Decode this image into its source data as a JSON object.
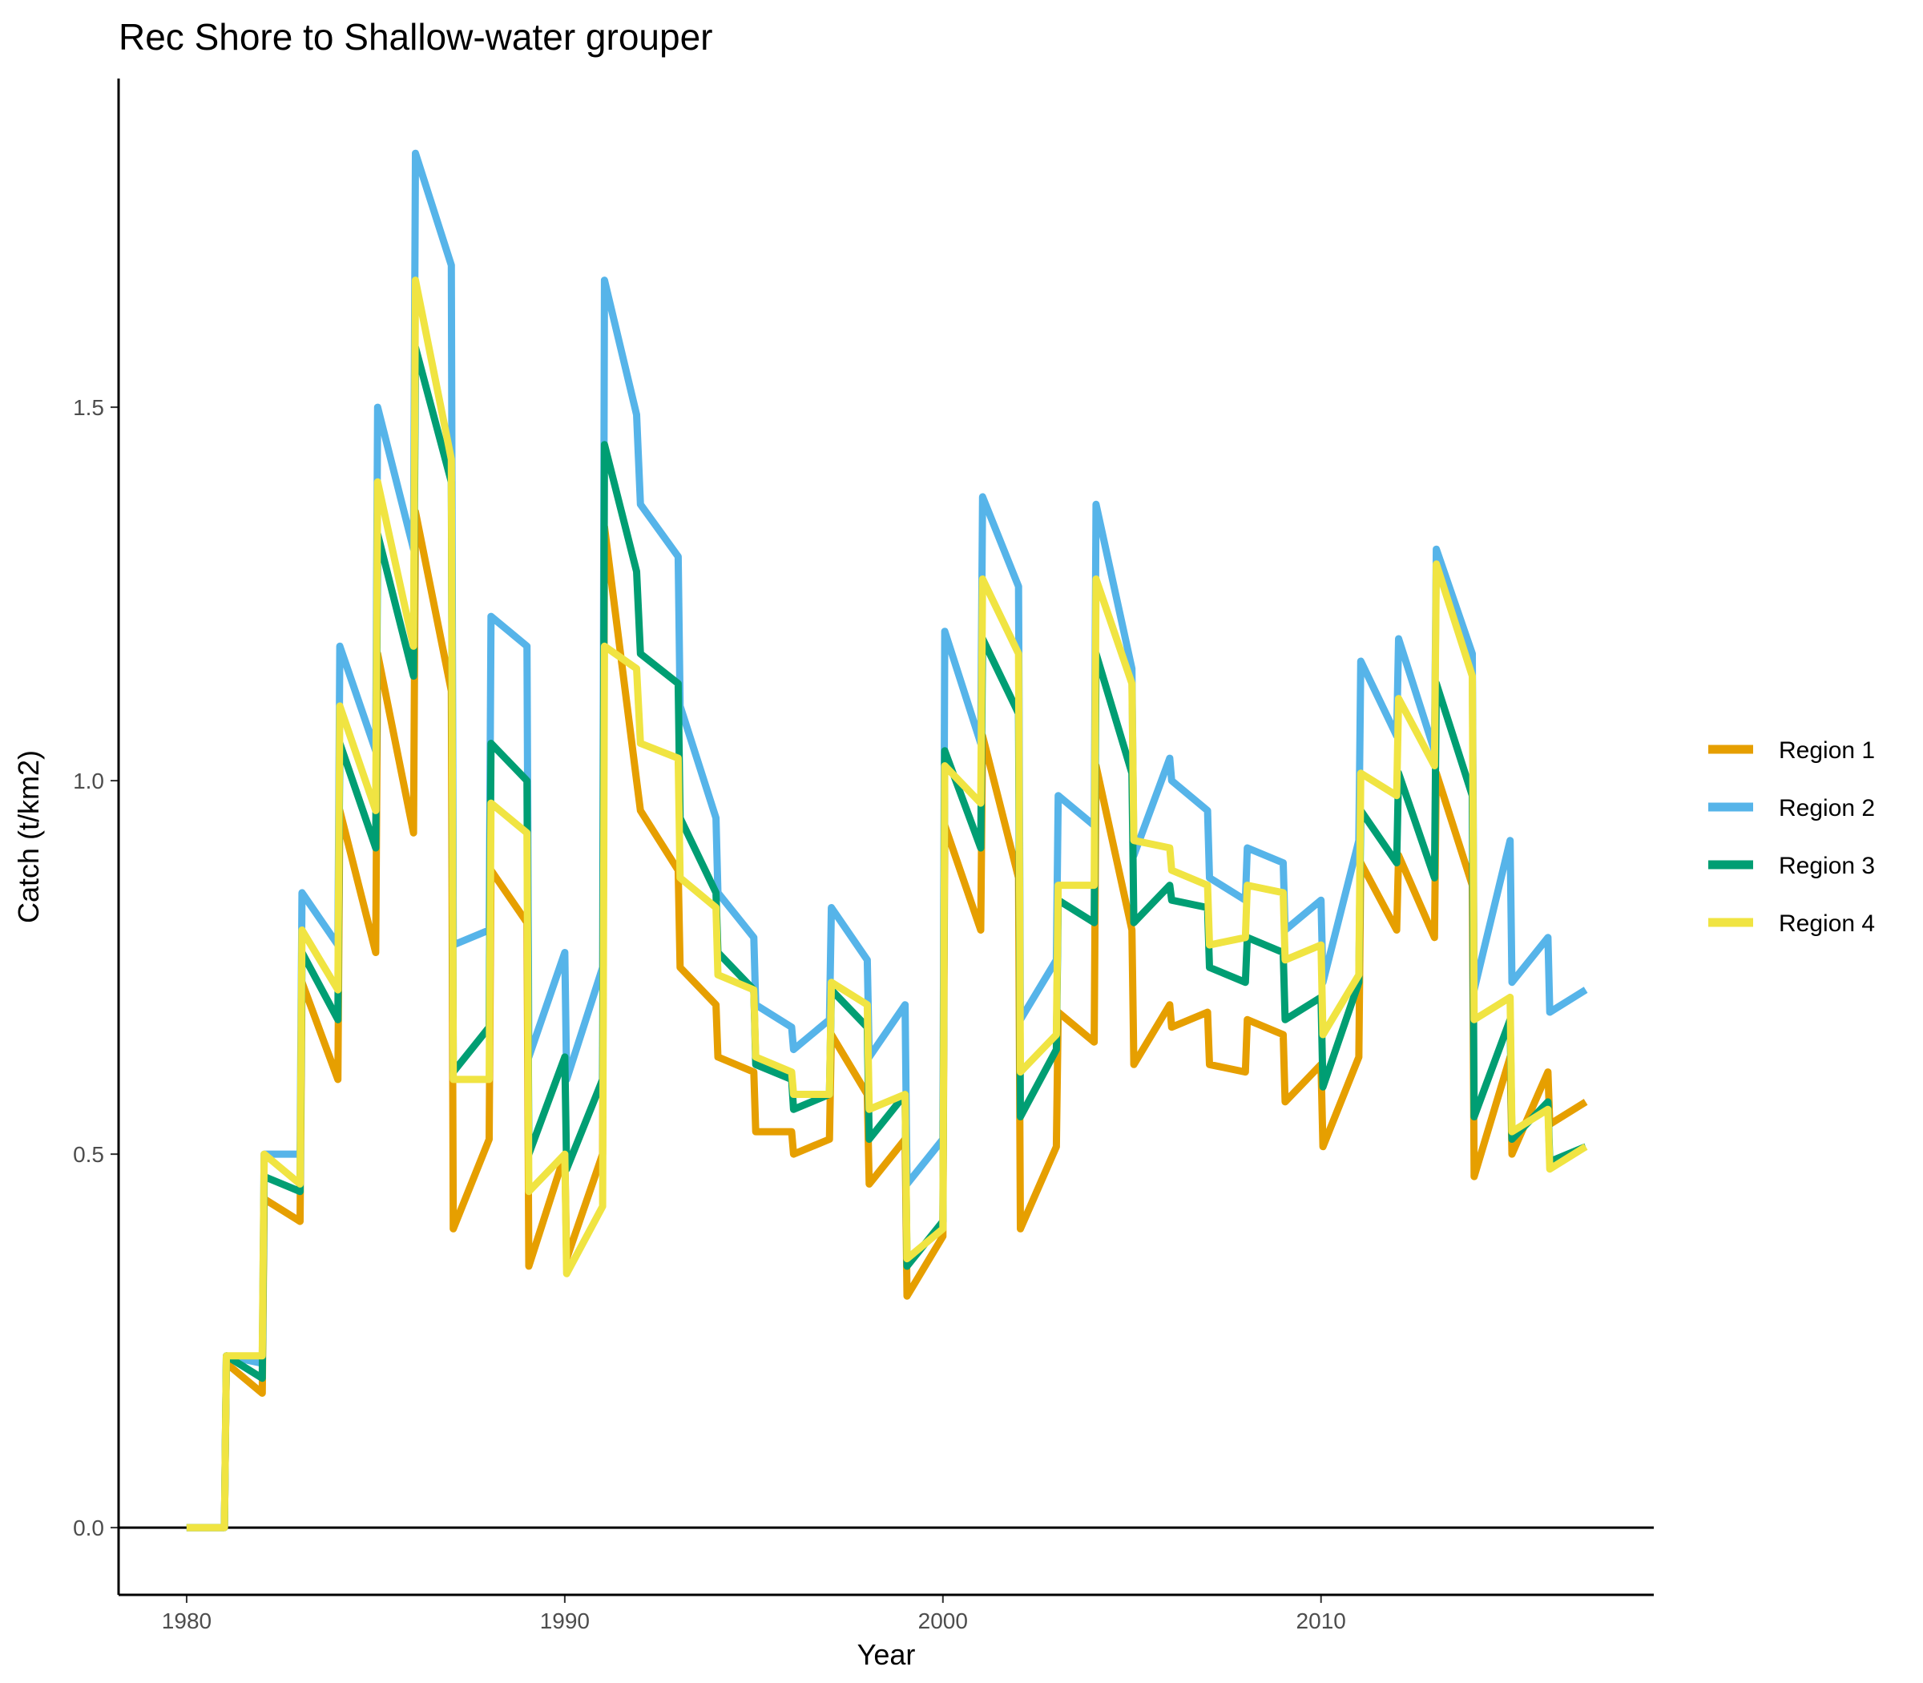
{
  "chart_data": {
    "type": "line",
    "title": "Rec Shore to Shallow-water grouper",
    "xlabel": "Year",
    "ylabel": "Catch (t/km2)",
    "xlim": [
      1978.2,
      2018.8
    ],
    "ylim": [
      -0.09,
      1.94
    ],
    "x_ticks": [
      1980,
      1990,
      2000,
      2010
    ],
    "y_ticks": [
      0.0,
      0.5,
      1.0,
      1.5
    ],
    "x_tick_labels": [
      "1980",
      "1990",
      "2000",
      "2010"
    ],
    "y_tick_labels": [
      "0.0",
      "0.5",
      "1.0",
      "1.5"
    ],
    "zero_reference_line": true,
    "grid": false,
    "legend_position": "right",
    "series": [
      {
        "name": "Region 1",
        "color": "#E69F00",
        "points": [
          [
            1980,
            0
          ],
          [
            1981,
            0
          ],
          [
            1981.05,
            0.22
          ],
          [
            1982,
            0.18
          ],
          [
            1982.05,
            0.44
          ],
          [
            1983,
            0.41
          ],
          [
            1983.05,
            0.73
          ],
          [
            1984,
            0.6
          ],
          [
            1984.05,
            0.96
          ],
          [
            1985,
            0.77
          ],
          [
            1985.05,
            1.17
          ],
          [
            1986,
            0.93
          ],
          [
            1986.05,
            1.36
          ],
          [
            1987,
            1.12
          ],
          [
            1987.05,
            0.4
          ],
          [
            1988,
            0.52
          ],
          [
            1988.05,
            0.88
          ],
          [
            1989,
            0.81
          ],
          [
            1989.05,
            0.35
          ],
          [
            1990,
            0.5
          ],
          [
            1990.05,
            0.36
          ],
          [
            1991,
            0.5
          ],
          [
            1991.05,
            1.34
          ],
          [
            1991.9,
            1.0
          ],
          [
            1992,
            0.96
          ],
          [
            1993,
            0.88
          ],
          [
            1993.05,
            0.75
          ],
          [
            1994,
            0.7
          ],
          [
            1994.05,
            0.63
          ],
          [
            1995,
            0.61
          ],
          [
            1995.05,
            0.53
          ],
          [
            1996,
            0.53
          ],
          [
            1996.05,
            0.5
          ],
          [
            1997,
            0.52
          ],
          [
            1997.05,
            0.66
          ],
          [
            1998,
            0.58
          ],
          [
            1998.05,
            0.46
          ],
          [
            1999,
            0.52
          ],
          [
            1999.05,
            0.31
          ],
          [
            2000,
            0.39
          ],
          [
            2000.05,
            0.94
          ],
          [
            2001,
            0.8
          ],
          [
            2001.05,
            1.06
          ],
          [
            2002,
            0.87
          ],
          [
            2002.05,
            0.4
          ],
          [
            2003,
            0.51
          ],
          [
            2003.05,
            0.69
          ],
          [
            2004,
            0.65
          ],
          [
            2004.05,
            1.02
          ],
          [
            2005,
            0.8
          ],
          [
            2005.05,
            0.62
          ],
          [
            2006,
            0.7
          ],
          [
            2006.05,
            0.67
          ],
          [
            2007,
            0.69
          ],
          [
            2007.05,
            0.62
          ],
          [
            2008,
            0.61
          ],
          [
            2008.05,
            0.68
          ],
          [
            2009,
            0.66
          ],
          [
            2009.05,
            0.57
          ],
          [
            2010,
            0.62
          ],
          [
            2010.05,
            0.51
          ],
          [
            2011,
            0.63
          ],
          [
            2011.05,
            0.89
          ],
          [
            2012,
            0.8
          ],
          [
            2012.05,
            0.9
          ],
          [
            2013,
            0.79
          ],
          [
            2013.05,
            1.01
          ],
          [
            2014,
            0.86
          ],
          [
            2014.05,
            0.47
          ],
          [
            2015,
            0.63
          ],
          [
            2015.05,
            0.5
          ],
          [
            2016,
            0.61
          ],
          [
            2016.05,
            0.54
          ],
          [
            2017,
            0.57
          ]
        ]
      },
      {
        "name": "Region 2",
        "color": "#56B4E9",
        "points": [
          [
            1980,
            0
          ],
          [
            1981,
            0
          ],
          [
            1981.05,
            0.23
          ],
          [
            1982,
            0.22
          ],
          [
            1982.05,
            0.5
          ],
          [
            1983,
            0.5
          ],
          [
            1983.05,
            0.85
          ],
          [
            1984,
            0.78
          ],
          [
            1984.05,
            1.18
          ],
          [
            1985,
            1.04
          ],
          [
            1985.05,
            1.5
          ],
          [
            1986,
            1.31
          ],
          [
            1986.05,
            1.84
          ],
          [
            1987,
            1.69
          ],
          [
            1987.05,
            0.78
          ],
          [
            1988,
            0.8
          ],
          [
            1988.05,
            1.22
          ],
          [
            1989,
            1.18
          ],
          [
            1989.05,
            0.63
          ],
          [
            1990,
            0.77
          ],
          [
            1990.05,
            0.6
          ],
          [
            1991,
            0.75
          ],
          [
            1991.05,
            1.67
          ],
          [
            1991.9,
            1.49
          ],
          [
            1992,
            1.37
          ],
          [
            1993,
            1.3
          ],
          [
            1993.05,
            1.1
          ],
          [
            1994,
            0.95
          ],
          [
            1994.05,
            0.85
          ],
          [
            1995,
            0.79
          ],
          [
            1995.05,
            0.7
          ],
          [
            1996,
            0.67
          ],
          [
            1996.05,
            0.64
          ],
          [
            1997,
            0.68
          ],
          [
            1997.05,
            0.83
          ],
          [
            1998,
            0.76
          ],
          [
            1998.05,
            0.63
          ],
          [
            1999,
            0.7
          ],
          [
            1999.05,
            0.46
          ],
          [
            2000,
            0.52
          ],
          [
            2000.05,
            1.2
          ],
          [
            2001,
            1.05
          ],
          [
            2001.05,
            1.38
          ],
          [
            2002,
            1.26
          ],
          [
            2002.05,
            0.68
          ],
          [
            2003,
            0.76
          ],
          [
            2003.05,
            0.98
          ],
          [
            2004,
            0.94
          ],
          [
            2004.05,
            1.37
          ],
          [
            2005,
            1.15
          ],
          [
            2005.05,
            0.9
          ],
          [
            2006,
            1.03
          ],
          [
            2006.05,
            1.0
          ],
          [
            2007,
            0.96
          ],
          [
            2007.05,
            0.87
          ],
          [
            2008,
            0.84
          ],
          [
            2008.05,
            0.91
          ],
          [
            2009,
            0.89
          ],
          [
            2009.05,
            0.8
          ],
          [
            2010,
            0.84
          ],
          [
            2010.05,
            0.73
          ],
          [
            2011,
            0.92
          ],
          [
            2011.05,
            1.16
          ],
          [
            2012,
            1.06
          ],
          [
            2012.05,
            1.19
          ],
          [
            2013,
            1.04
          ],
          [
            2013.05,
            1.31
          ],
          [
            2014,
            1.17
          ],
          [
            2014.05,
            0.72
          ],
          [
            2015,
            0.92
          ],
          [
            2015.05,
            0.73
          ],
          [
            2016,
            0.79
          ],
          [
            2016.05,
            0.69
          ],
          [
            2017,
            0.72
          ]
        ]
      },
      {
        "name": "Region 3",
        "color": "#009E73",
        "points": [
          [
            1980,
            0
          ],
          [
            1981,
            0
          ],
          [
            1981.05,
            0.23
          ],
          [
            1982,
            0.2
          ],
          [
            1982.05,
            0.47
          ],
          [
            1983,
            0.45
          ],
          [
            1983.05,
            0.77
          ],
          [
            1984,
            0.68
          ],
          [
            1984.05,
            1.05
          ],
          [
            1985,
            0.91
          ],
          [
            1985.05,
            1.33
          ],
          [
            1986,
            1.14
          ],
          [
            1986.05,
            1.58
          ],
          [
            1987,
            1.4
          ],
          [
            1987.05,
            0.61
          ],
          [
            1988,
            0.67
          ],
          [
            1988.05,
            1.05
          ],
          [
            1989,
            1.0
          ],
          [
            1989.05,
            0.5
          ],
          [
            1990,
            0.63
          ],
          [
            1990.05,
            0.48
          ],
          [
            1991,
            0.6
          ],
          [
            1991.05,
            1.45
          ],
          [
            1991.9,
            1.28
          ],
          [
            1992,
            1.17
          ],
          [
            1993,
            1.13
          ],
          [
            1993.05,
            0.95
          ],
          [
            1994,
            0.85
          ],
          [
            1994.05,
            0.77
          ],
          [
            1995,
            0.72
          ],
          [
            1995.05,
            0.62
          ],
          [
            1996,
            0.6
          ],
          [
            1996.05,
            0.56
          ],
          [
            1997,
            0.58
          ],
          [
            1997.05,
            0.72
          ],
          [
            1998,
            0.67
          ],
          [
            1998.05,
            0.52
          ],
          [
            1999,
            0.58
          ],
          [
            1999.05,
            0.35
          ],
          [
            2000,
            0.41
          ],
          [
            2000.05,
            1.04
          ],
          [
            2001,
            0.91
          ],
          [
            2001.05,
            1.19
          ],
          [
            2002,
            1.09
          ],
          [
            2002.05,
            0.55
          ],
          [
            2003,
            0.64
          ],
          [
            2003.05,
            0.84
          ],
          [
            2004,
            0.81
          ],
          [
            2004.05,
            1.17
          ],
          [
            2005,
            1.01
          ],
          [
            2005.05,
            0.81
          ],
          [
            2006,
            0.86
          ],
          [
            2006.05,
            0.84
          ],
          [
            2007,
            0.83
          ],
          [
            2007.05,
            0.75
          ],
          [
            2008,
            0.73
          ],
          [
            2008.05,
            0.79
          ],
          [
            2009,
            0.77
          ],
          [
            2009.05,
            0.68
          ],
          [
            2010,
            0.71
          ],
          [
            2010.05,
            0.59
          ],
          [
            2011,
            0.73
          ],
          [
            2011.05,
            0.96
          ],
          [
            2012,
            0.89
          ],
          [
            2012.05,
            1.01
          ],
          [
            2013,
            0.87
          ],
          [
            2013.05,
            1.13
          ],
          [
            2014,
            0.98
          ],
          [
            2014.05,
            0.55
          ],
          [
            2015,
            0.68
          ],
          [
            2015.05,
            0.52
          ],
          [
            2016,
            0.57
          ],
          [
            2016.05,
            0.49
          ],
          [
            2017,
            0.51
          ]
        ]
      },
      {
        "name": "Region 4",
        "color": "#F0E442",
        "points": [
          [
            1980,
            0
          ],
          [
            1981,
            0
          ],
          [
            1981.05,
            0.23
          ],
          [
            1982,
            0.23
          ],
          [
            1982.05,
            0.5
          ],
          [
            1983,
            0.46
          ],
          [
            1983.05,
            0.8
          ],
          [
            1984,
            0.72
          ],
          [
            1984.05,
            1.1
          ],
          [
            1985,
            0.96
          ],
          [
            1985.05,
            1.4
          ],
          [
            1986,
            1.18
          ],
          [
            1986.05,
            1.67
          ],
          [
            1987,
            1.43
          ],
          [
            1987.05,
            0.6
          ],
          [
            1988,
            0.6
          ],
          [
            1988.05,
            0.97
          ],
          [
            1989,
            0.93
          ],
          [
            1989.05,
            0.45
          ],
          [
            1990,
            0.5
          ],
          [
            1990.05,
            0.34
          ],
          [
            1991,
            0.43
          ],
          [
            1991.05,
            1.18
          ],
          [
            1991.9,
            1.15
          ],
          [
            1992,
            1.05
          ],
          [
            1993,
            1.03
          ],
          [
            1993.05,
            0.87
          ],
          [
            1994,
            0.83
          ],
          [
            1994.05,
            0.74
          ],
          [
            1995,
            0.72
          ],
          [
            1995.05,
            0.63
          ],
          [
            1996,
            0.61
          ],
          [
            1996.05,
            0.58
          ],
          [
            1997,
            0.58
          ],
          [
            1997.05,
            0.73
          ],
          [
            1998,
            0.7
          ],
          [
            1998.05,
            0.56
          ],
          [
            1999,
            0.58
          ],
          [
            1999.05,
            0.36
          ],
          [
            2000,
            0.4
          ],
          [
            2000.05,
            1.02
          ],
          [
            2001,
            0.97
          ],
          [
            2001.05,
            1.27
          ],
          [
            2002,
            1.17
          ],
          [
            2002.05,
            0.61
          ],
          [
            2003,
            0.66
          ],
          [
            2003.05,
            0.86
          ],
          [
            2004,
            0.86
          ],
          [
            2004.05,
            1.27
          ],
          [
            2005,
            1.13
          ],
          [
            2005.05,
            0.92
          ],
          [
            2006,
            0.91
          ],
          [
            2006.05,
            0.88
          ],
          [
            2007,
            0.86
          ],
          [
            2007.05,
            0.78
          ],
          [
            2008,
            0.79
          ],
          [
            2008.05,
            0.86
          ],
          [
            2009,
            0.85
          ],
          [
            2009.05,
            0.76
          ],
          [
            2010,
            0.78
          ],
          [
            2010.05,
            0.66
          ],
          [
            2011,
            0.74
          ],
          [
            2011.05,
            1.01
          ],
          [
            2012,
            0.98
          ],
          [
            2012.05,
            1.11
          ],
          [
            2013,
            1.02
          ],
          [
            2013.05,
            1.29
          ],
          [
            2014,
            1.14
          ],
          [
            2014.05,
            0.68
          ],
          [
            2015,
            0.71
          ],
          [
            2015.05,
            0.53
          ],
          [
            2016,
            0.56
          ],
          [
            2016.05,
            0.48
          ],
          [
            2017,
            0.51
          ]
        ]
      }
    ]
  }
}
